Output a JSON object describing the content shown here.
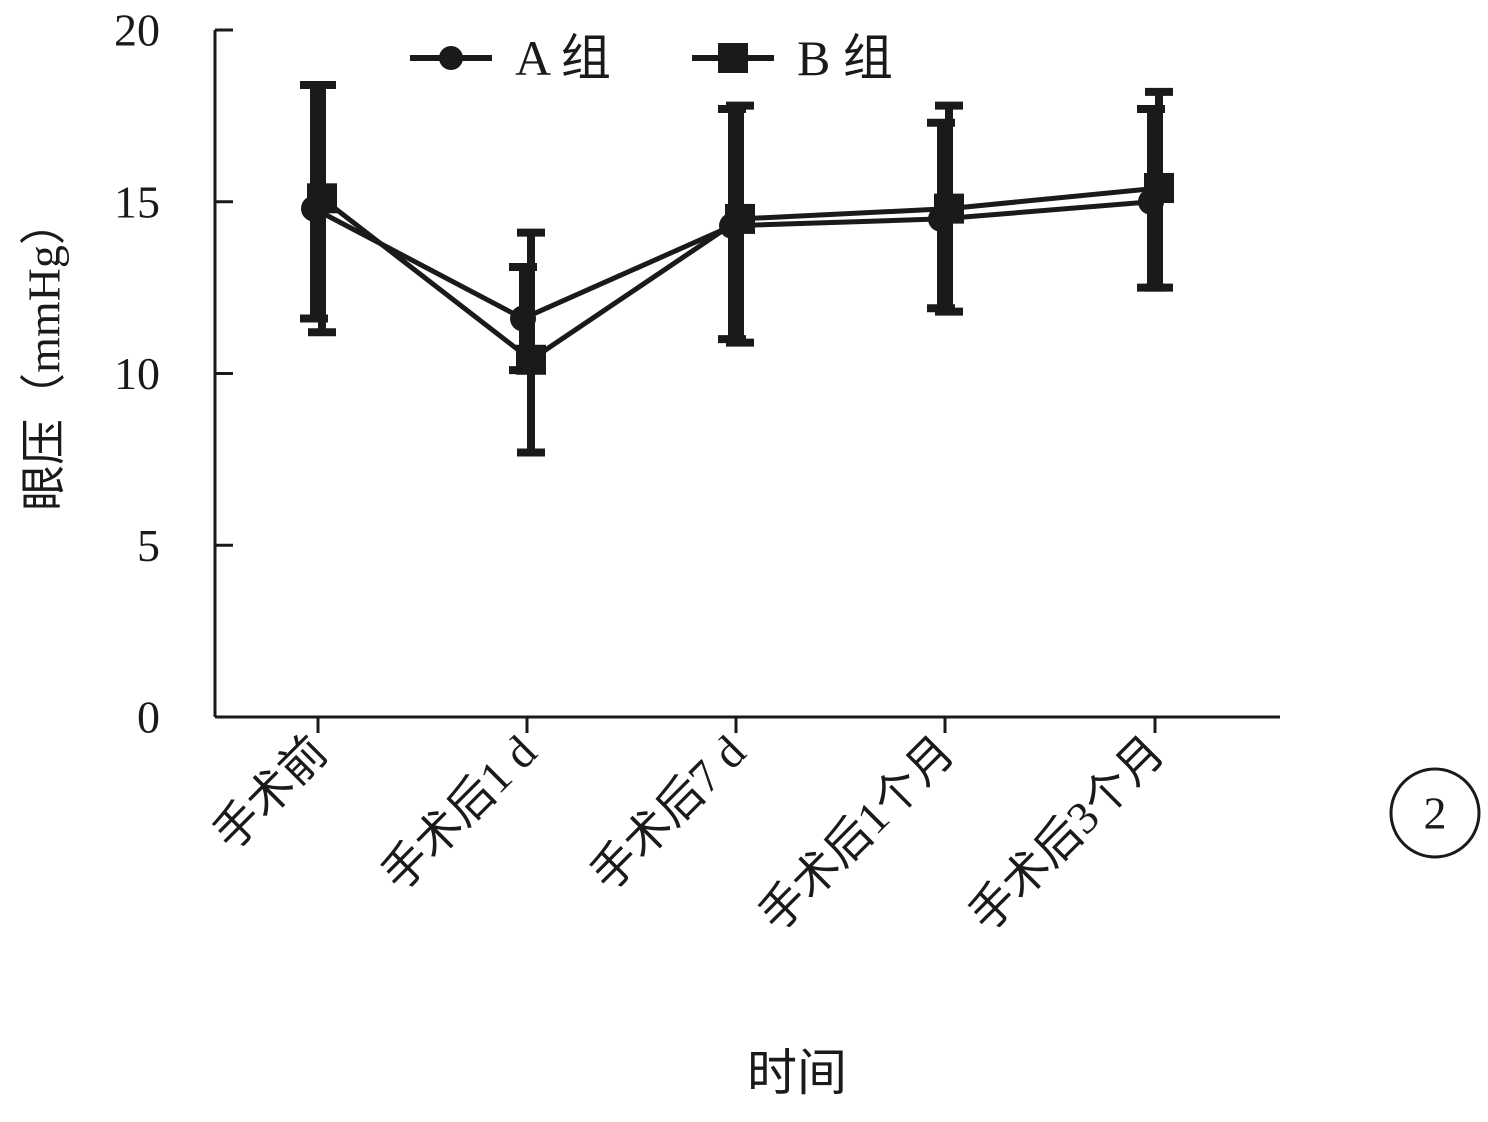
{
  "chart_data": {
    "type": "line",
    "xlabel": "时间",
    "ylabel": "眼压（mmHg）",
    "categories": [
      "手术前",
      "手术后1 d",
      "手术后7 d",
      "手术后1个月",
      "手术后3个月"
    ],
    "ylim": [
      0,
      20
    ],
    "yticks": [
      "0",
      "5",
      "10",
      "15",
      "20"
    ],
    "legend_position": "top",
    "grid": false,
    "panel_label": "2",
    "series": [
      {
        "name": "A 组",
        "marker": "circle",
        "values": [
          14.8,
          11.6,
          14.3,
          14.5,
          15.0
        ],
        "err_low": [
          11.6,
          10.1,
          11.0,
          11.9,
          12.5
        ],
        "err_high": [
          18.4,
          13.1,
          17.7,
          17.3,
          17.7
        ]
      },
      {
        "name": "B 组",
        "marker": "square",
        "values": [
          15.1,
          10.4,
          14.5,
          14.8,
          15.4
        ],
        "err_low": [
          11.2,
          7.7,
          10.9,
          11.8,
          12.5
        ],
        "err_high": [
          18.4,
          14.1,
          17.8,
          17.8,
          18.2
        ]
      }
    ],
    "colors": {
      "line": "#1a1a1a"
    }
  }
}
